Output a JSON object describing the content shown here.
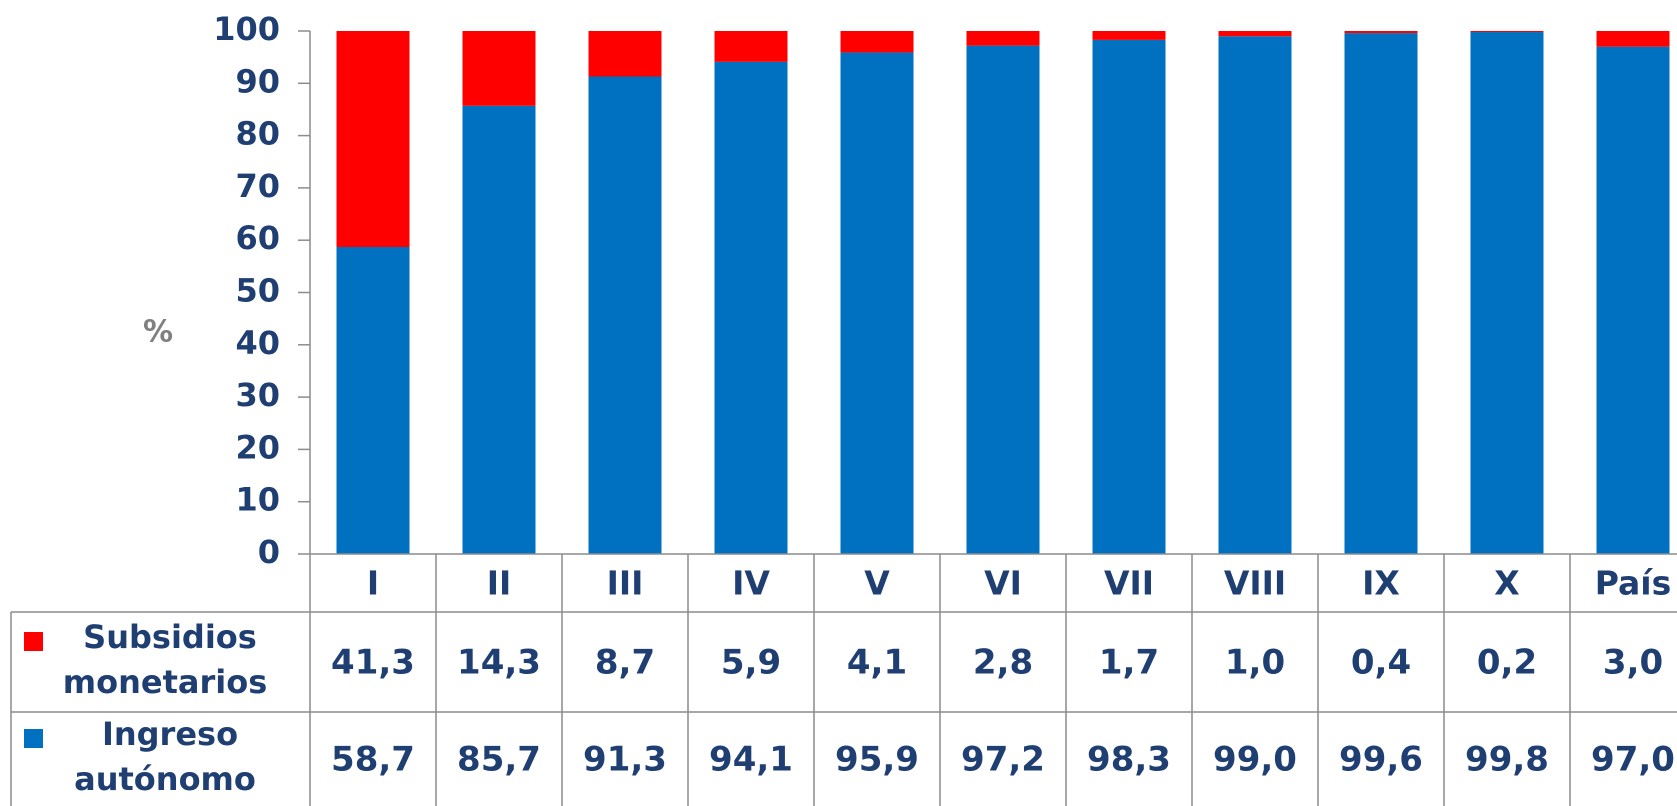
{
  "chart_data": {
    "type": "bar",
    "stacked": true,
    "y_label": "%",
    "categories": [
      "I",
      "II",
      "III",
      "IV",
      "V",
      "VI",
      "VII",
      "VIII",
      "IX",
      "X",
      "País"
    ],
    "series": [
      {
        "name": "Subsidios monetarios",
        "color": "#ff0000",
        "values": [
          41.3,
          14.3,
          8.7,
          5.9,
          4.1,
          2.8,
          1.7,
          1.0,
          0.4,
          0.2,
          3.0
        ],
        "value_labels": [
          "41,3",
          "14,3",
          "8,7",
          "5,9",
          "4,1",
          "2,8",
          "1,7",
          "1,0",
          "0,4",
          "0,2",
          "3,0"
        ]
      },
      {
        "name": "Ingreso autónomo",
        "color": "#0070c0",
        "values": [
          58.7,
          85.7,
          91.3,
          94.1,
          95.9,
          97.2,
          98.3,
          99.0,
          99.6,
          99.8,
          97.0
        ],
        "value_labels": [
          "58,7",
          "85,7",
          "91,3",
          "94,1",
          "95,9",
          "97,2",
          "98,3",
          "99,0",
          "99,6",
          "99,8",
          "97,0"
        ]
      }
    ],
    "ylim": [
      0,
      100
    ],
    "yticks": [
      0,
      10,
      20,
      30,
      40,
      50,
      60,
      70,
      80,
      90,
      100
    ],
    "grid": false
  }
}
